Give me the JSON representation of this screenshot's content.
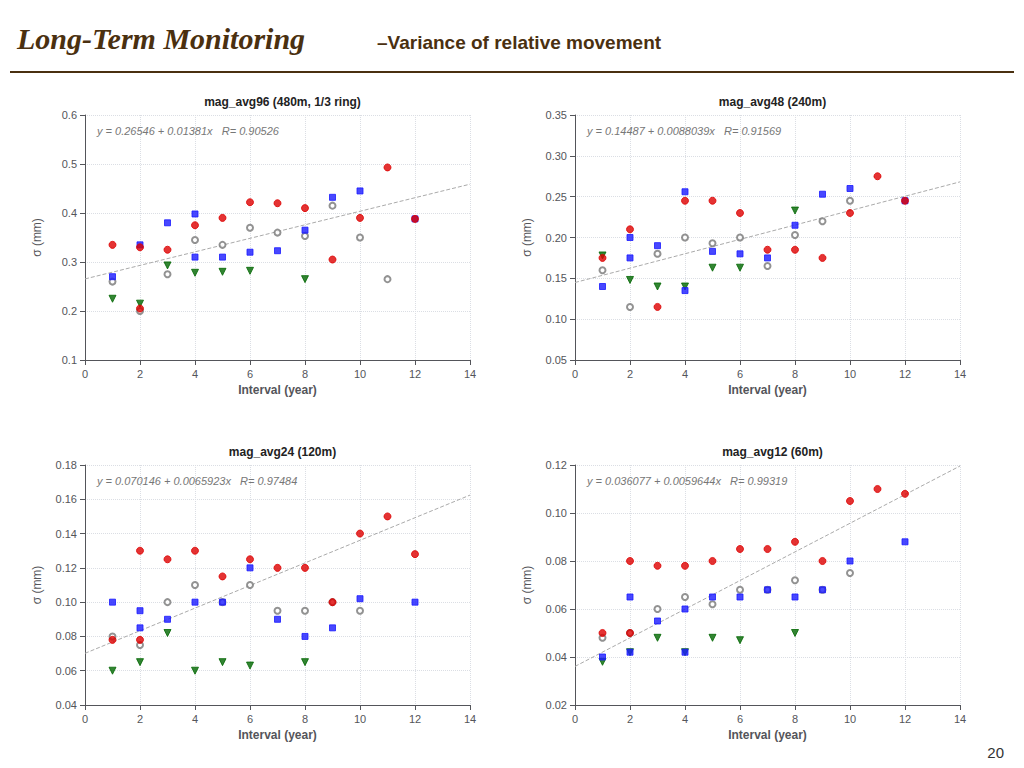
{
  "title": "Long-Term Monitoring",
  "subtitle": "–Variance of relative movement",
  "annotations": [
    "20"
  ],
  "chart_data": [
    {
      "type": "scatter",
      "title": "mag_avg96 (480m, 1/3 ring)",
      "xlabel": "Interval (year)",
      "ylabel": "σ (mm)",
      "xlim": [
        0,
        14
      ],
      "ylim": [
        0.1,
        0.6
      ],
      "xticks": [
        0,
        2,
        4,
        6,
        8,
        10,
        12,
        14
      ],
      "yticks": [
        0.1,
        0.2,
        0.3,
        0.4,
        0.5,
        0.6
      ],
      "grid": true,
      "annotations": [
        "y = 0.26546 + 0.01381x   R= 0.90526"
      ],
      "series": [
        {
          "type": "line",
          "color": "#aaaaaa",
          "line_style": "dashed",
          "x": [
            0,
            14
          ],
          "values": [
            0.26546,
            0.4588
          ]
        },
        {
          "type": "scatter",
          "color": "#777777",
          "marker": "circle_open",
          "x": [
            1,
            2,
            3,
            4,
            5,
            6,
            7,
            8,
            9,
            10,
            11
          ],
          "values": [
            0.26,
            0.2,
            0.275,
            0.345,
            0.335,
            0.37,
            0.36,
            0.353,
            0.415,
            0.35,
            0.265
          ]
        },
        {
          "type": "scatter",
          "color": "#006600",
          "marker": "triangle_down",
          "x": [
            1,
            2,
            3,
            4,
            5,
            6,
            8
          ],
          "values": [
            0.225,
            0.215,
            0.293,
            0.278,
            0.28,
            0.282,
            0.265
          ]
        },
        {
          "type": "scatter",
          "color": "#1a1aff",
          "marker": "square",
          "x": [
            1,
            2,
            3,
            4,
            4,
            5,
            6,
            7,
            8,
            9,
            10,
            12
          ],
          "values": [
            0.27,
            0.335,
            0.38,
            0.398,
            0.31,
            0.31,
            0.32,
            0.323,
            0.365,
            0.432,
            0.445,
            0.388
          ]
        },
        {
          "type": "scatter",
          "color": "#dd0000",
          "marker": "circle",
          "x": [
            1,
            2,
            2,
            3,
            4,
            5,
            6,
            7,
            8,
            9,
            10,
            11,
            12
          ],
          "values": [
            0.335,
            0.205,
            0.33,
            0.325,
            0.375,
            0.39,
            0.422,
            0.42,
            0.41,
            0.305,
            0.39,
            0.493,
            0.388
          ]
        }
      ]
    },
    {
      "type": "scatter",
      "title": "mag_avg48 (240m)",
      "xlabel": "Interval (year)",
      "ylabel": "σ (mm)",
      "xlim": [
        0,
        14
      ],
      "ylim": [
        0.05,
        0.35
      ],
      "xticks": [
        0,
        2,
        4,
        6,
        8,
        10,
        12,
        14
      ],
      "yticks": [
        0.05,
        {
          "value": 0.1,
          "label": "0.10"
        },
        0.15,
        {
          "value": 0.2,
          "label": "0.20"
        },
        0.25,
        {
          "value": 0.3,
          "label": "0.30"
        },
        0.35
      ],
      "grid": true,
      "annotations": [
        "y = 0.14487 + 0.0088039x   R= 0.91569"
      ],
      "series": [
        {
          "type": "line",
          "color": "#aaaaaa",
          "line_style": "dashed",
          "x": [
            0,
            14
          ],
          "values": [
            0.14487,
            0.2681246
          ]
        },
        {
          "type": "scatter",
          "color": "#777777",
          "marker": "circle_open",
          "x": [
            1,
            2,
            3,
            4,
            5,
            6,
            7,
            8,
            9,
            10
          ],
          "values": [
            0.16,
            0.115,
            0.18,
            0.2,
            0.193,
            0.2,
            0.165,
            0.203,
            0.22,
            0.245
          ]
        },
        {
          "type": "scatter",
          "color": "#006600",
          "marker": "triangle_down",
          "x": [
            1,
            2,
            3,
            4,
            5,
            6,
            8
          ],
          "values": [
            0.178,
            0.148,
            0.14,
            0.14,
            0.163,
            0.163,
            0.233
          ]
        },
        {
          "type": "scatter",
          "color": "#1a1aff",
          "marker": "square",
          "x": [
            1,
            2,
            2,
            3,
            4,
            4,
            5,
            6,
            7,
            8,
            9,
            10,
            12
          ],
          "values": [
            0.14,
            0.2,
            0.175,
            0.19,
            0.256,
            0.135,
            0.183,
            0.18,
            0.175,
            0.215,
            0.253,
            0.26,
            0.245
          ]
        },
        {
          "type": "scatter",
          "color": "#dd0000",
          "marker": "circle",
          "x": [
            1,
            2,
            3,
            4,
            5,
            6,
            7,
            8,
            9,
            10,
            11,
            12
          ],
          "values": [
            0.175,
            0.21,
            0.115,
            0.245,
            0.245,
            0.23,
            0.185,
            0.185,
            0.175,
            0.23,
            0.275,
            0.245
          ]
        }
      ]
    },
    {
      "type": "scatter",
      "title": "mag_avg24 (120m)",
      "xlabel": "Interval (year)",
      "ylabel": "σ (mm)",
      "xlim": [
        0,
        14
      ],
      "ylim": [
        0.04,
        0.18
      ],
      "xticks": [
        0,
        2,
        4,
        6,
        8,
        10,
        12,
        14
      ],
      "yticks": [
        0.04,
        0.06,
        0.08,
        {
          "value": 0.1,
          "label": "0.10"
        },
        0.12,
        0.14,
        0.16,
        0.18
      ],
      "grid": true,
      "annotations": [
        "y = 0.070146 + 0.0065923x   R= 0.97484"
      ],
      "series": [
        {
          "type": "line",
          "color": "#aaaaaa",
          "line_style": "dashed",
          "x": [
            0,
            14
          ],
          "values": [
            0.070146,
            0.1624382
          ]
        },
        {
          "type": "scatter",
          "color": "#777777",
          "marker": "circle_open",
          "x": [
            1,
            2,
            3,
            4,
            5,
            6,
            7,
            8,
            9,
            10
          ],
          "values": [
            0.08,
            0.075,
            0.1,
            0.11,
            0.1,
            0.11,
            0.095,
            0.095,
            0.1,
            0.095
          ]
        },
        {
          "type": "scatter",
          "color": "#006600",
          "marker": "triangle_down",
          "x": [
            1,
            2,
            3,
            4,
            5,
            6,
            8
          ],
          "values": [
            0.06,
            0.065,
            0.082,
            0.06,
            0.065,
            0.063,
            0.065
          ]
        },
        {
          "type": "scatter",
          "color": "#1a1aff",
          "marker": "square",
          "x": [
            1,
            2,
            2,
            3,
            4,
            5,
            6,
            7,
            8,
            9,
            10,
            12
          ],
          "values": [
            0.1,
            0.095,
            0.085,
            0.09,
            0.1,
            0.1,
            0.12,
            0.09,
            0.08,
            0.085,
            0.102,
            0.1
          ]
        },
        {
          "type": "scatter",
          "color": "#dd0000",
          "marker": "circle",
          "x": [
            1,
            2,
            2,
            3,
            4,
            5,
            6,
            7,
            8,
            9,
            10,
            11,
            12
          ],
          "values": [
            0.078,
            0.078,
            0.13,
            0.125,
            0.13,
            0.115,
            0.125,
            0.12,
            0.12,
            0.1,
            0.14,
            0.15,
            0.128
          ]
        }
      ]
    },
    {
      "type": "scatter",
      "title": "mag_avg12 (60m)",
      "xlabel": "Interval (year)",
      "ylabel": "σ (mm)",
      "xlim": [
        0,
        14
      ],
      "ylim": [
        0.02,
        0.12
      ],
      "xticks": [
        0,
        2,
        4,
        6,
        8,
        10,
        12,
        14
      ],
      "yticks": [
        0.02,
        0.04,
        0.06,
        0.08,
        {
          "value": 0.1,
          "label": "0.10"
        },
        0.12
      ],
      "grid": true,
      "annotations": [
        "y = 0.036077 + 0.0059644x   R= 0.99319"
      ],
      "series": [
        {
          "type": "line",
          "color": "#aaaaaa",
          "line_style": "dashed",
          "x": [
            0,
            14
          ],
          "values": [
            0.036077,
            0.1195786
          ]
        },
        {
          "type": "scatter",
          "color": "#777777",
          "marker": "circle_open",
          "x": [
            1,
            2,
            3,
            4,
            5,
            6,
            7,
            8,
            9,
            10
          ],
          "values": [
            0.048,
            0.05,
            0.06,
            0.065,
            0.062,
            0.068,
            0.068,
            0.072,
            0.068,
            0.075
          ]
        },
        {
          "type": "scatter",
          "color": "#006600",
          "marker": "triangle_down",
          "x": [
            1,
            2,
            3,
            4,
            5,
            6,
            8
          ],
          "values": [
            0.038,
            0.042,
            0.048,
            0.042,
            0.048,
            0.047,
            0.05
          ]
        },
        {
          "type": "scatter",
          "color": "#1a1aff",
          "marker": "square",
          "x": [
            1,
            2,
            2,
            3,
            4,
            4,
            5,
            6,
            7,
            8,
            9,
            10,
            12
          ],
          "values": [
            0.04,
            0.042,
            0.065,
            0.055,
            0.06,
            0.042,
            0.065,
            0.065,
            0.068,
            0.065,
            0.068,
            0.08,
            0.088
          ]
        },
        {
          "type": "scatter",
          "color": "#dd0000",
          "marker": "circle",
          "x": [
            1,
            2,
            2,
            3,
            4,
            5,
            6,
            7,
            8,
            9,
            10,
            11,
            12
          ],
          "values": [
            0.05,
            0.05,
            0.08,
            0.078,
            0.078,
            0.08,
            0.085,
            0.085,
            0.088,
            0.08,
            0.105,
            0.11,
            0.108
          ]
        }
      ]
    }
  ]
}
